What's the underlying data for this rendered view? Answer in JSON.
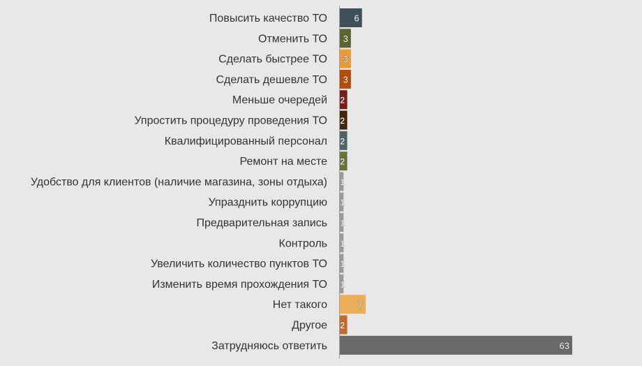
{
  "chart_data": {
    "type": "bar",
    "orientation": "horizontal",
    "categories": [
      "Повысить качество ТО",
      "Отменить ТО",
      "Сделать быстрее ТО",
      "Сделать дешевле ТО",
      "Меньше очередей",
      "Упростить процедуру проведения ТО",
      "Квалифицированный персонал",
      "Ремонт на месте",
      "Удобство для клиентов (наличие магазина, зоны отдыха)",
      "Упразднить коррупцию",
      "Предварительная запись",
      "Контроль",
      "Увеличить количество пунктов ТО",
      "Изменить время прохождения ТО",
      "Нет такого",
      "Другое",
      "Затрудняюсь ответить"
    ],
    "values": [
      6,
      3,
      3,
      3,
      2,
      2,
      2,
      2,
      1,
      1,
      1,
      1,
      1,
      1,
      7,
      2,
      63
    ],
    "value_labels": [
      "6",
      "3",
      "3",
      "3",
      "2",
      "2",
      "2",
      "2",
      "1",
      "1",
      "1",
      "1",
      "1",
      "1",
      "7",
      "2",
      "63"
    ],
    "colors": [
      "#3e5158",
      "#5e6430",
      "#e89a34",
      "#b34c08",
      "#7a1b18",
      "#45250b",
      "#4e6469",
      "#6c7137",
      "#9a9a9a",
      "#9a9a9a",
      "#9a9a9a",
      "#9a9a9a",
      "#9a9a9a",
      "#9a9a9a",
      "#ebad58",
      "#c26a2c",
      "#696969"
    ],
    "xlim": [
      0,
      63
    ],
    "grid": false,
    "legend": "none",
    "title": "",
    "xlabel": "",
    "ylabel": ""
  }
}
